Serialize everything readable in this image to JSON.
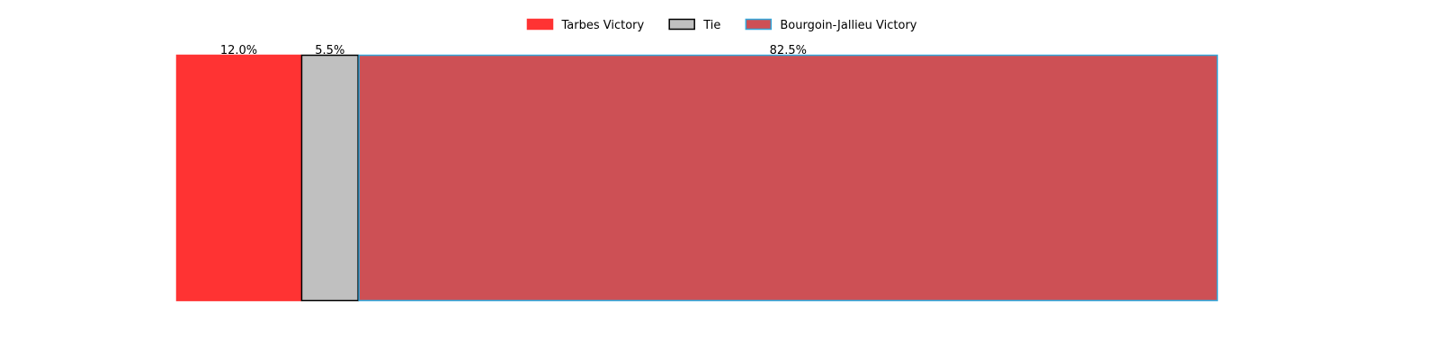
{
  "chart_data": {
    "type": "bar",
    "orientation": "horizontal",
    "stacked": true,
    "normalized": true,
    "xlim": [
      0,
      100
    ],
    "grid": false,
    "axes_visible": false,
    "legend_position": "top-center",
    "series": [
      {
        "name": "Tarbes Victory",
        "value": 12.0,
        "label": "12.0%",
        "color": "#ff3333",
        "edge_color": "#ff3333"
      },
      {
        "name": "Tie",
        "value": 5.5,
        "label": "5.5%",
        "color": "#c0c0c0",
        "edge_color": "#000000"
      },
      {
        "name": "Bourgoin-Jallieu Victory",
        "value": 82.5,
        "label": "82.5%",
        "color": "#cd5055",
        "edge_color": "#33a6d9"
      }
    ]
  }
}
